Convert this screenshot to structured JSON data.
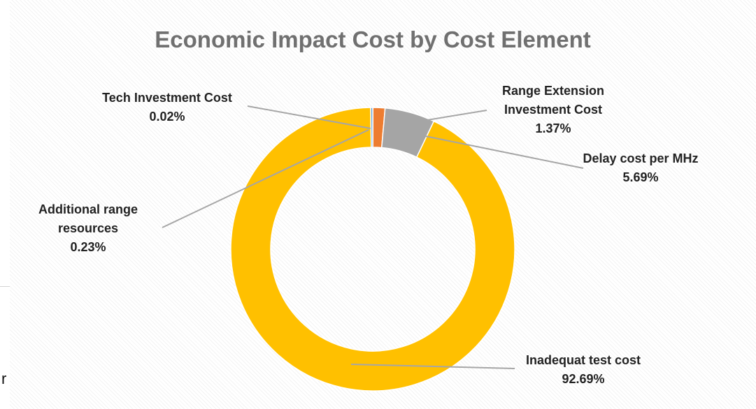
{
  "stray_text": "r",
  "chart_data": {
    "type": "pie",
    "variant": "donut",
    "title": "Economic Impact Cost by Cost Element",
    "slices": [
      {
        "name": "Tech Investment Cost",
        "value": 0.02,
        "value_label": "0.02%",
        "color": "#4472C4",
        "label_lines": [
          "Tech Investment Cost"
        ]
      },
      {
        "name": "Range Extension Investment Cost",
        "value": 1.37,
        "value_label": "1.37%",
        "color": "#ED7D31",
        "label_lines": [
          "Range Extension",
          "Investment Cost"
        ]
      },
      {
        "name": "Delay cost per MHz",
        "value": 5.69,
        "value_label": "5.69%",
        "color": "#A5A5A5",
        "label_lines": [
          "Delay cost per MHz"
        ]
      },
      {
        "name": "Inadequat test cost",
        "value": 92.69,
        "value_label": "92.69%",
        "color": "#FFC000",
        "label_lines": [
          "Inadequat test cost"
        ]
      },
      {
        "name": "Additional range resources",
        "value": 0.23,
        "value_label": "0.23%",
        "color": "#5B9BD5",
        "label_lines": [
          "Additional range",
          "resources"
        ]
      }
    ],
    "legend": "none",
    "data_labels": "outside with leader lines"
  }
}
